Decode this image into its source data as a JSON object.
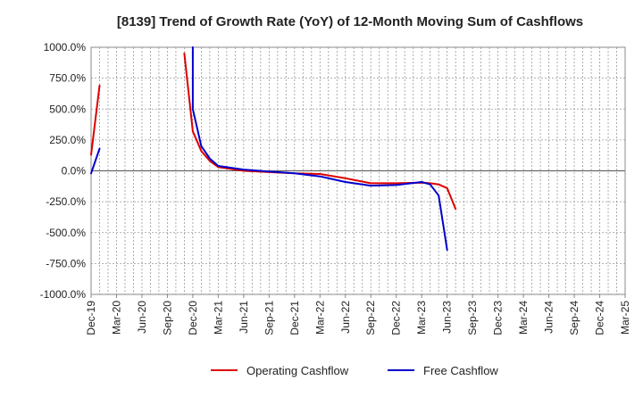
{
  "chart_data": {
    "type": "line",
    "title": "[8139]  Trend of Growth Rate (YoY) of 12-Month Moving Sum of Cashflows",
    "xlabel": "",
    "ylabel": "",
    "ylim": [
      -1000,
      1000
    ],
    "y_ticks": [
      1000,
      750,
      500,
      250,
      0,
      -250,
      -500,
      -750,
      -1000
    ],
    "y_tick_labels": [
      "1000.0%",
      "750.0%",
      "500.0%",
      "250.0%",
      "0.0%",
      "-250.0%",
      "-500.0%",
      "-750.0%",
      "-1000.0%"
    ],
    "x_ticks": [
      "2019-12",
      "2020-03",
      "2020-06",
      "2020-09",
      "2020-12",
      "2021-03",
      "2021-06",
      "2021-09",
      "2021-12",
      "2022-03",
      "2022-06",
      "2022-09",
      "2022-12",
      "2023-03",
      "2023-06",
      "2023-09",
      "2023-12",
      "2024-03",
      "2024-06",
      "2024-09",
      "2024-12",
      "2025-03"
    ],
    "x_tick_labels": [
      "Dec-19",
      "Mar-20",
      "Jun-20",
      "Sep-20",
      "Dec-20",
      "Mar-21",
      "Jun-21",
      "Sep-21",
      "Dec-21",
      "Mar-22",
      "Jun-22",
      "Sep-22",
      "Dec-22",
      "Mar-23",
      "Jun-23",
      "Sep-23",
      "Dec-23",
      "Mar-24",
      "Jun-24",
      "Sep-24",
      "Dec-24",
      "Mar-25"
    ],
    "grid": true,
    "legend_position": "bottom-center",
    "series": [
      {
        "name": "Operating Cashflow",
        "color": "#dd0000",
        "points": [
          [
            "2019-12",
            130
          ],
          [
            "2020-01",
            690
          ],
          [
            "2020-11",
            950
          ],
          [
            "2020-12",
            320
          ],
          [
            "2021-01",
            160
          ],
          [
            "2021-02",
            80
          ],
          [
            "2021-03",
            30
          ],
          [
            "2021-06",
            0
          ],
          [
            "2021-09",
            -10
          ],
          [
            "2021-12",
            -20
          ],
          [
            "2022-03",
            -25
          ],
          [
            "2022-06",
            -60
          ],
          [
            "2022-09",
            -100
          ],
          [
            "2022-12",
            -100
          ],
          [
            "2023-03",
            -95
          ],
          [
            "2023-04",
            -100
          ],
          [
            "2023-05",
            -110
          ],
          [
            "2023-06",
            -140
          ],
          [
            "2023-07",
            -310
          ]
        ]
      },
      {
        "name": "Free Cashflow",
        "color": "#0000cc",
        "points": [
          [
            "2019-12",
            -20
          ],
          [
            "2020-01",
            180
          ],
          [
            "2020-12",
            1000
          ],
          [
            "2020-12",
            500
          ],
          [
            "2021-01",
            200
          ],
          [
            "2021-02",
            100
          ],
          [
            "2021-03",
            40
          ],
          [
            "2021-06",
            10
          ],
          [
            "2021-09",
            -5
          ],
          [
            "2021-12",
            -20
          ],
          [
            "2022-03",
            -45
          ],
          [
            "2022-06",
            -90
          ],
          [
            "2022-09",
            -120
          ],
          [
            "2022-12",
            -115
          ],
          [
            "2023-03",
            -90
          ],
          [
            "2023-04",
            -110
          ],
          [
            "2023-05",
            -200
          ],
          [
            "2023-06",
            -640
          ]
        ]
      }
    ]
  }
}
